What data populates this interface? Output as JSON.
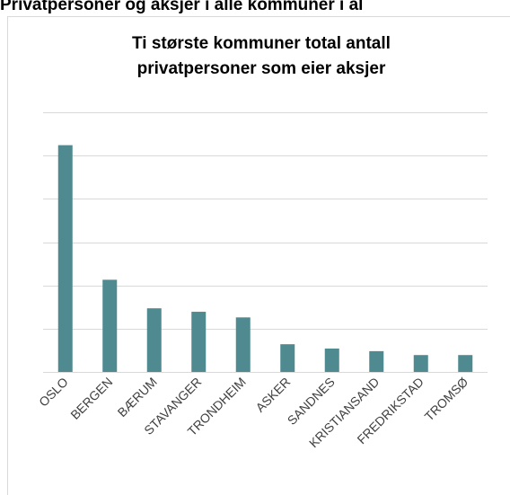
{
  "page_heading": "Privatpersoner og aksjer i alle kommuner i al",
  "chart_data": {
    "type": "bar",
    "title": [
      "Ti største kommuner total antall",
      "privatpersoner som eier aksjer"
    ],
    "categories": [
      "OSLO",
      "BERGEN",
      "BÆRUM",
      "STAVANGER",
      "TRONDHEIM",
      "ASKER",
      "SANDNES",
      "KRISTIANSAND",
      "FREDRIKSTAD",
      "TROMSØ"
    ],
    "values": [
      5.24,
      2.13,
      1.47,
      1.39,
      1.26,
      0.64,
      0.54,
      0.48,
      0.39,
      0.39
    ],
    "color": "#4e8a90",
    "ylim": [
      0,
      6
    ],
    "yticks": [
      0,
      1,
      2,
      3,
      4,
      5,
      6
    ],
    "grid": true
  }
}
